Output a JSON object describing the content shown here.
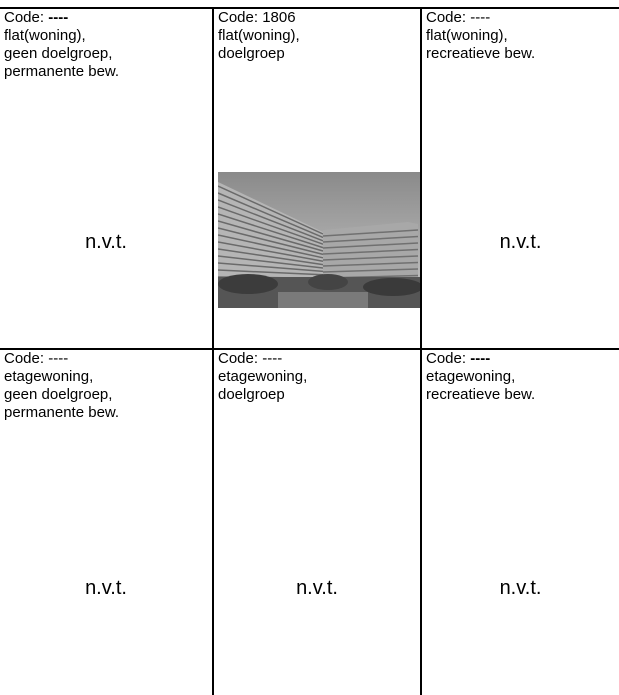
{
  "table": {
    "rows": [
      [
        {
          "code_label": "Code:",
          "code": "----",
          "code_bold": true,
          "description": [
            "flat(woning),",
            "geen doelgroep,",
            "permanente bew."
          ],
          "placeholder": "n.v.t."
        },
        {
          "code_label": "Code:",
          "code": "1806",
          "code_bold": false,
          "description": [
            "flat(woning),",
            "doelgroep"
          ]
        },
        {
          "code_label": "Code:",
          "code": "----",
          "code_bold": false,
          "description": [
            "flat(woning),",
            "recreatieve bew."
          ],
          "placeholder": "n.v.t."
        }
      ],
      [
        {
          "code_label": "Code:",
          "code": "----",
          "code_bold": false,
          "description": [
            "etagewoning,",
            "geen doelgroep,",
            "permanente bew."
          ],
          "placeholder": "n.v.t."
        },
        {
          "code_label": "Code:",
          "code": "----",
          "code_bold": false,
          "description": [
            "etagewoning,",
            "doelgroep"
          ],
          "placeholder": "n.v.t."
        },
        {
          "code_label": "Code:",
          "code": "----",
          "code_bold": true,
          "description": [
            "etagewoning,",
            "recreatieve bew."
          ],
          "placeholder": "n.v.t."
        }
      ]
    ]
  }
}
